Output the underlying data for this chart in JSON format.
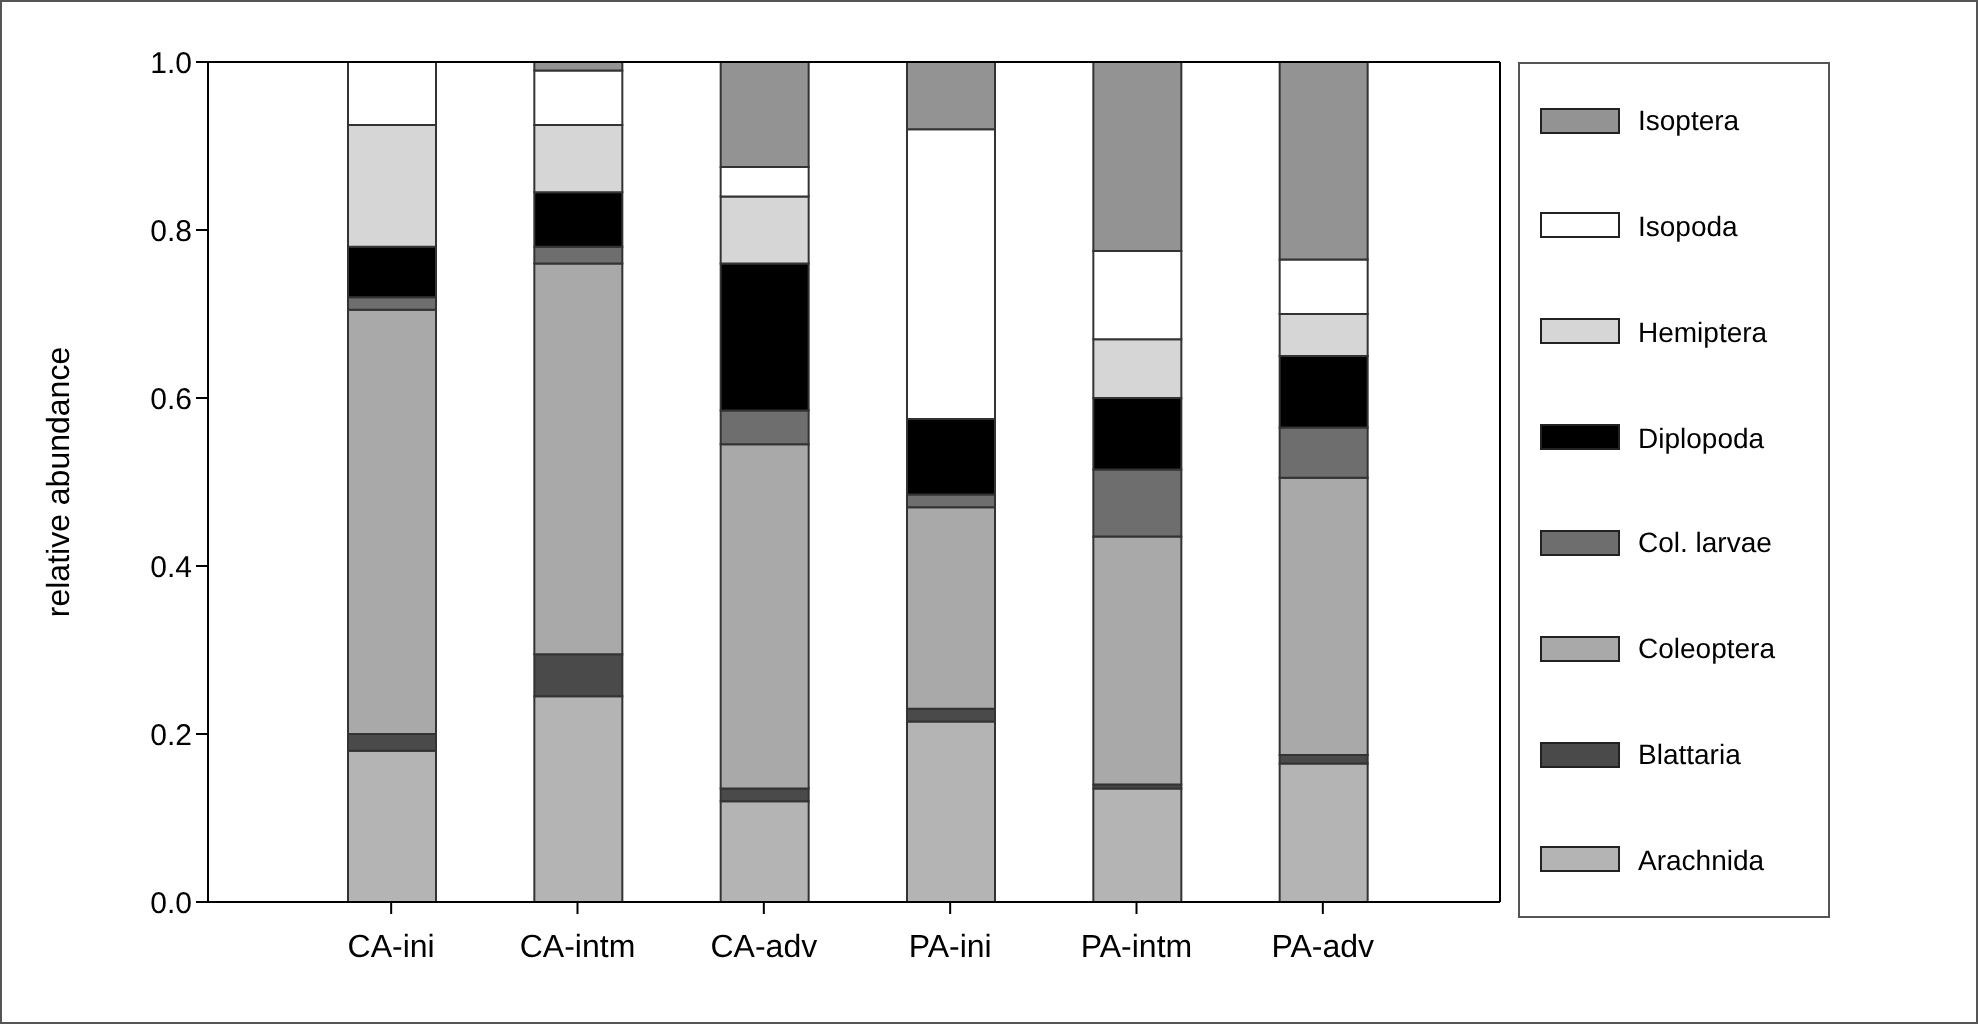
{
  "chart_data": {
    "type": "bar",
    "stacked": true,
    "ylabel": "relative abundance",
    "categories": [
      "CA-ini",
      "CA-intm",
      "CA-adv",
      "PA-ini",
      "PA-intm",
      "PA-adv"
    ],
    "series": [
      {
        "name": "Arachnida",
        "color": "#b4b4b4",
        "values": [
          0.18,
          0.245,
          0.12,
          0.215,
          0.135,
          0.165
        ]
      },
      {
        "name": "Blattaria",
        "color": "#4a4a4a",
        "values": [
          0.02,
          0.05,
          0.015,
          0.015,
          0.005,
          0.01
        ]
      },
      {
        "name": "Coleoptera",
        "color": "#a9a9a9",
        "values": [
          0.505,
          0.465,
          0.41,
          0.24,
          0.295,
          0.33
        ]
      },
      {
        "name": "Col. larvae",
        "color": "#6e6e6e",
        "values": [
          0.015,
          0.02,
          0.04,
          0.015,
          0.08,
          0.06
        ]
      },
      {
        "name": "Diplopoda",
        "color": "#000000",
        "values": [
          0.06,
          0.065,
          0.175,
          0.09,
          0.085,
          0.085
        ]
      },
      {
        "name": "Hemiptera",
        "color": "#d6d6d6",
        "values": [
          0.145,
          0.08,
          0.08,
          0,
          0.07,
          0.05
        ]
      },
      {
        "name": "Isopoda",
        "color": "#ffffff",
        "values": [
          0.075,
          0.065,
          0.035,
          0.345,
          0.105,
          0.065
        ]
      },
      {
        "name": "Isoptera",
        "color": "#939393",
        "values": [
          0,
          0.01,
          0.125,
          0.08,
          0.225,
          0.235
        ]
      }
    ],
    "ylim": [
      0,
      1
    ],
    "yticks": [
      {
        "value": 0,
        "label": "0.0"
      },
      {
        "value": 0.2,
        "label": "0.2"
      },
      {
        "value": 0.4,
        "label": "0.4"
      },
      {
        "value": 0.6,
        "label": "0.6"
      },
      {
        "value": 0.8,
        "label": "0.8"
      },
      {
        "value": 1,
        "label": "1.0"
      }
    ],
    "grid": false,
    "legend": "right"
  }
}
